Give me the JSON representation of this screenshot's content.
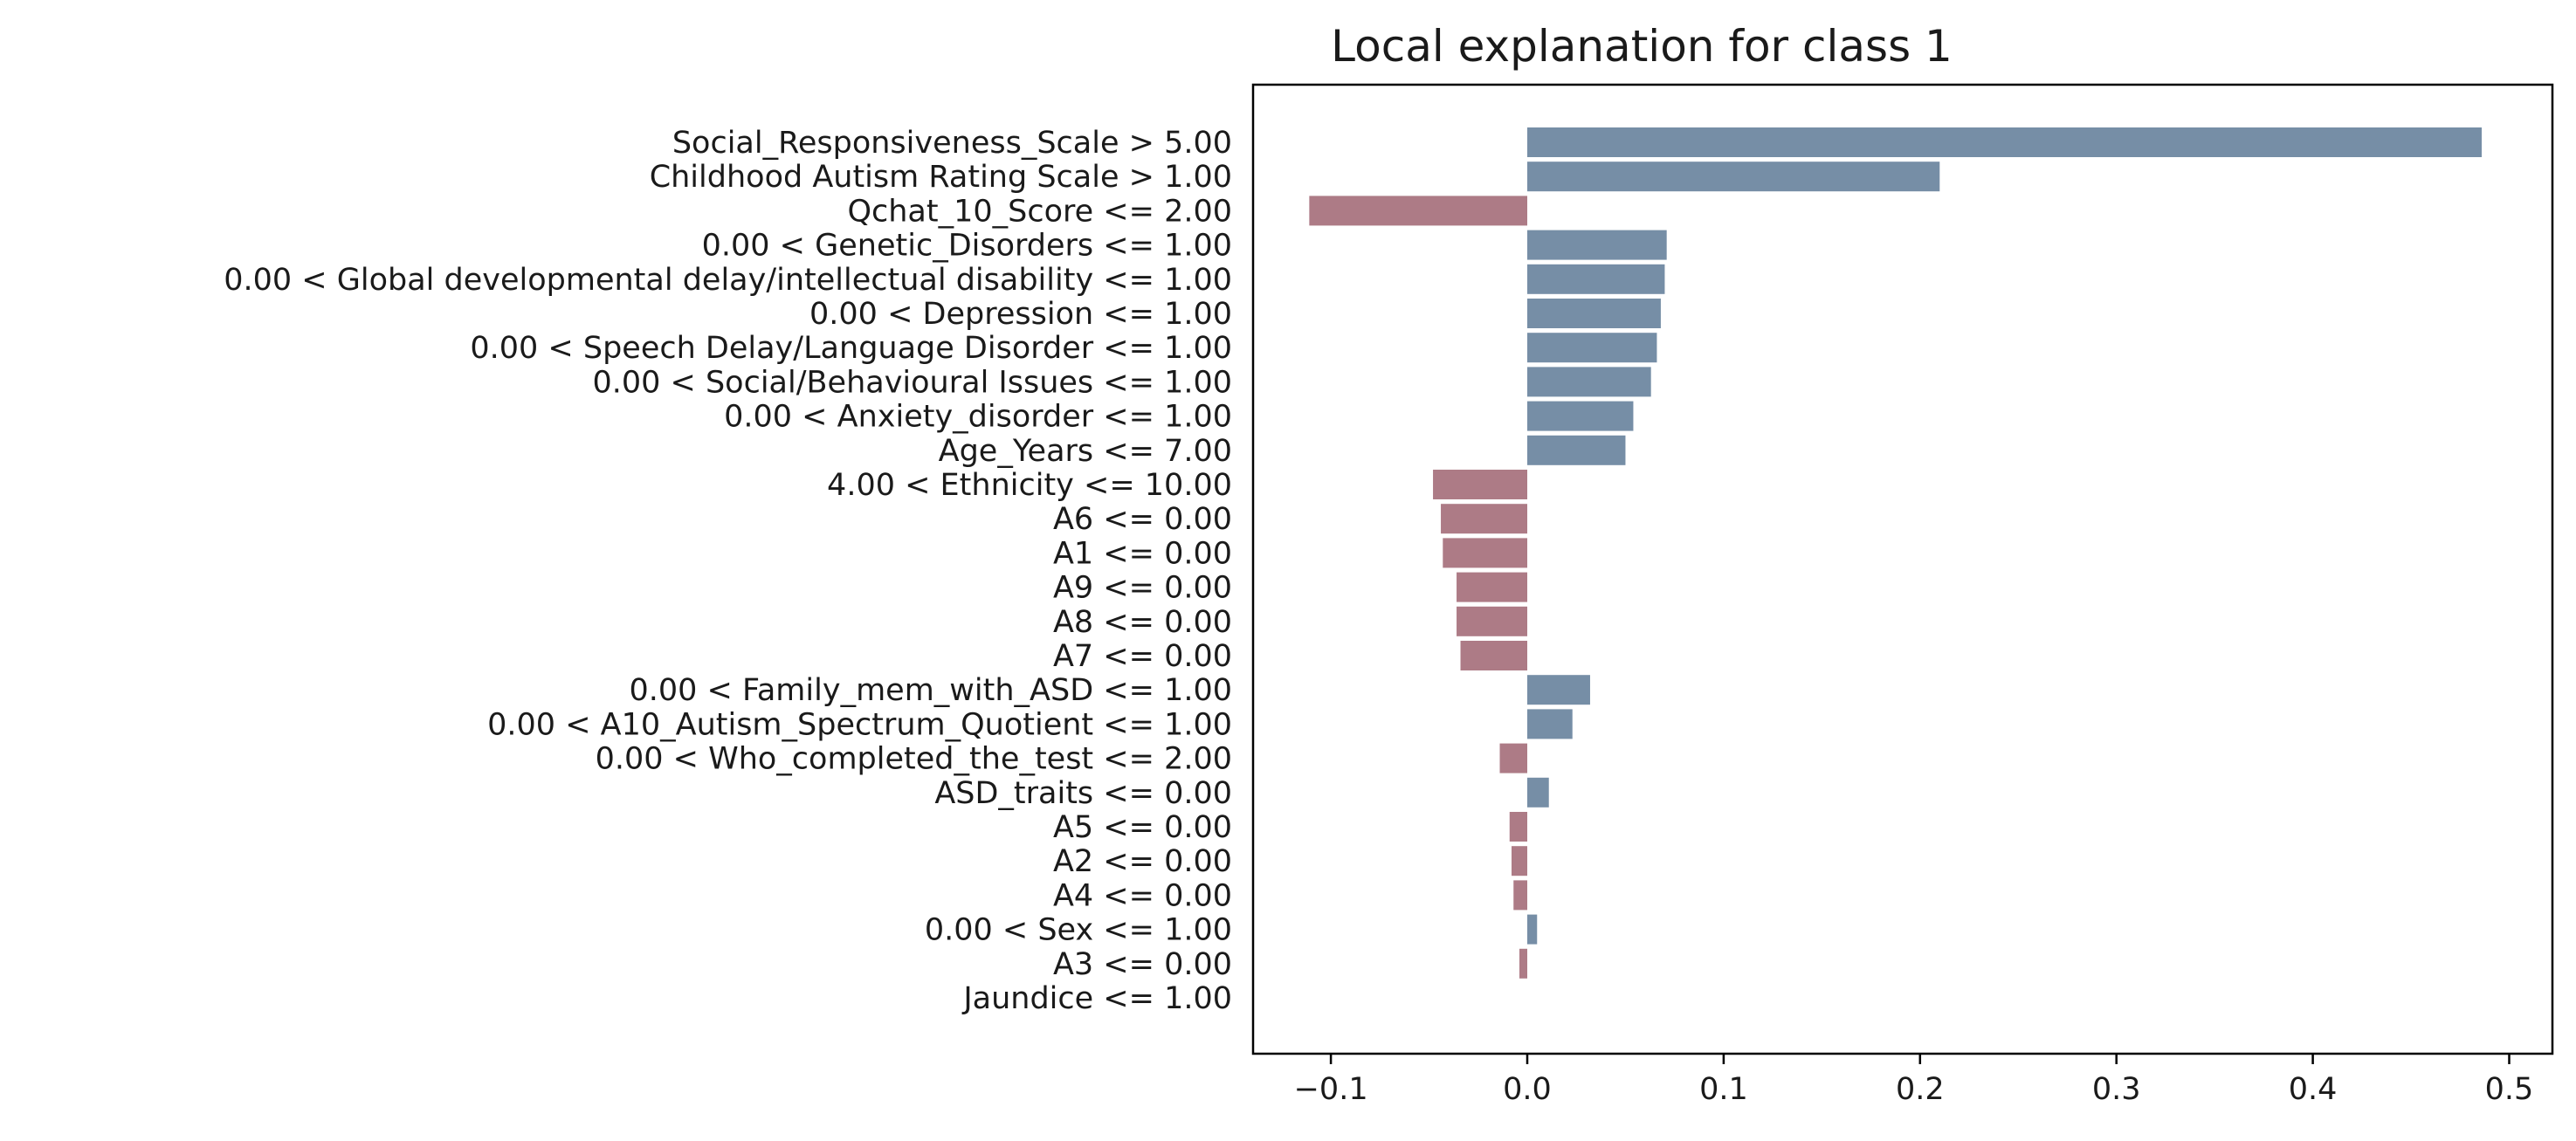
{
  "chart_data": {
    "type": "bar",
    "orientation": "horizontal",
    "title": "Local explanation for class 1",
    "xlabel": "",
    "ylabel": "",
    "xlim": [
      -0.14,
      0.52
    ],
    "xticks": [
      -0.1,
      0.0,
      0.1,
      0.2,
      0.3,
      0.4,
      0.5
    ],
    "xtick_labels": [
      "−0.1",
      "0.0",
      "0.1",
      "0.2",
      "0.3",
      "0.4",
      "0.5"
    ],
    "grid": false,
    "legend": "none",
    "colors": {
      "positive": "#768ea6",
      "negative": "#ad7b86"
    },
    "categories": [
      "Social_Responsiveness_Scale > 5.00",
      "Childhood Autism Rating Scale > 1.00",
      "Qchat_10_Score <= 2.00",
      "0.00 < Genetic_Disorders <= 1.00",
      "0.00 < Global developmental delay/intellectual disability <= 1.00",
      "0.00 < Depression <= 1.00",
      "0.00 < Speech Delay/Language Disorder <= 1.00",
      "0.00 < Social/Behavioural Issues <= 1.00",
      "0.00 < Anxiety_disorder <= 1.00",
      "Age_Years <= 7.00",
      "4.00 < Ethnicity <= 10.00",
      "A6 <= 0.00",
      "A1 <= 0.00",
      "A9 <= 0.00",
      "A8 <= 0.00",
      "A7 <= 0.00",
      "0.00 < Family_mem_with_ASD <= 1.00",
      "0.00 < A10_Autism_Spectrum_Quotient <= 1.00",
      "0.00 < Who_completed_the_test <= 2.00",
      "ASD_traits <= 0.00",
      "A5 <= 0.00",
      "A2 <= 0.00",
      "A4 <= 0.00",
      "0.00 < Sex <= 1.00",
      "A3 <= 0.00",
      "Jaundice <= 1.00"
    ],
    "values": [
      0.486,
      0.21,
      -0.111,
      0.071,
      0.07,
      0.068,
      0.066,
      0.063,
      0.054,
      0.05,
      -0.048,
      -0.044,
      -0.043,
      -0.036,
      -0.036,
      -0.034,
      0.032,
      0.023,
      -0.014,
      0.011,
      -0.009,
      -0.008,
      -0.007,
      0.005,
      -0.004,
      0.0
    ]
  }
}
